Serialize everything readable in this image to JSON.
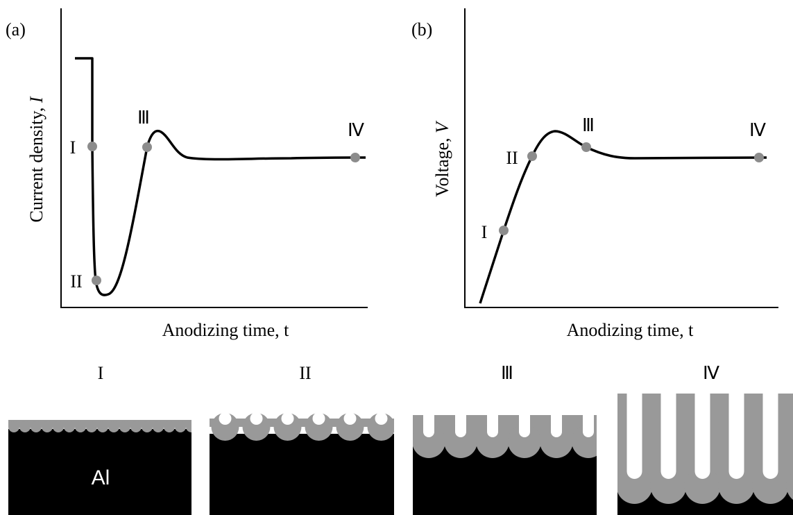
{
  "panels": [
    {
      "label": "(a)",
      "y_axis_label": "Current density, ",
      "y_axis_symbol": "I",
      "x_axis_label": "Anodizing time, t",
      "points": [
        "I",
        "II",
        "Ⅲ",
        "Ⅳ"
      ]
    },
    {
      "label": "(b)",
      "y_axis_label": "Voltage, ",
      "y_axis_symbol": "V",
      "x_axis_label": "Anodizing time, t",
      "points": [
        "I",
        "II",
        "Ⅲ",
        "Ⅳ"
      ]
    }
  ],
  "stages": [
    "I",
    "II",
    "Ⅲ",
    "Ⅳ"
  ],
  "metal_label": "Al"
}
